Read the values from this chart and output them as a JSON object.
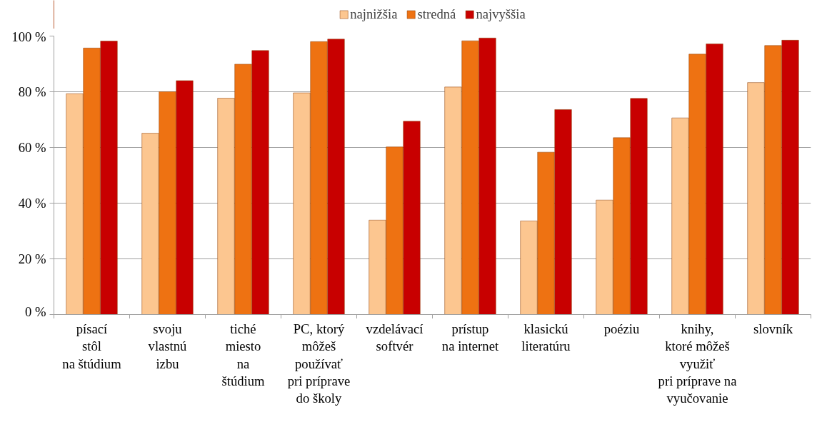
{
  "chart_data": {
    "type": "bar",
    "categories": [
      "písací\nstôl\nna štúdium",
      "svoju\nvlastnú\nizbu",
      "tiché\nmiesto\nna\nštúdium",
      "PC, ktorý\nmôžeš\npoužívať\npri príprave\ndo školy",
      "vzdelávací\nsoftvér",
      "prístup\nna internet",
      "klasickú\nliteratúru",
      "poéziu",
      "knihy,\nktoré môžeš\nvyužiť\npri príprave na\nvyučovanie",
      "slovník"
    ],
    "series": [
      {
        "name": "najnižšia",
        "color": "#fcc690",
        "values": [
          79.3,
          65.1,
          77.7,
          79.6,
          33.9,
          81.7,
          33.6,
          41.1,
          70.6,
          83.3
        ]
      },
      {
        "name": "stredná",
        "color": "#ee7212",
        "values": [
          95.7,
          80.0,
          89.9,
          98.0,
          60.2,
          98.3,
          58.3,
          63.5,
          93.5,
          96.6
        ]
      },
      {
        "name": "najvyššia",
        "color": "#c80000",
        "values": [
          98.2,
          84.0,
          94.8,
          98.9,
          69.4,
          99.3,
          73.6,
          77.6,
          97.2,
          98.5
        ]
      }
    ],
    "ylim": [
      0,
      100
    ],
    "yticks": [
      {
        "value": 0,
        "label": "0 %"
      },
      {
        "value": 20,
        "label": "20 %"
      },
      {
        "value": 40,
        "label": "40 %"
      },
      {
        "value": 60,
        "label": "60 %"
      },
      {
        "value": 80,
        "label": "80 %"
      },
      {
        "value": 100,
        "label": "100 %"
      }
    ],
    "grid": "y",
    "legend": "top"
  }
}
